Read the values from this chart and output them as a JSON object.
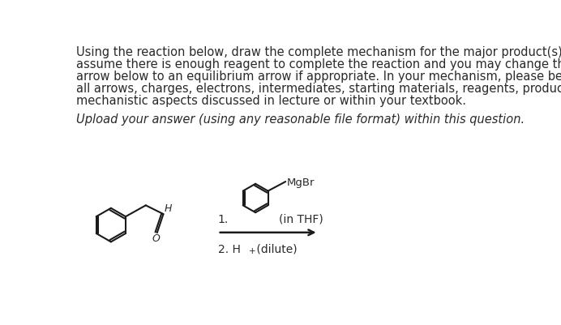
{
  "background_color": "#ffffff",
  "text_color": "#2a2a2a",
  "lines": [
    "Using the reaction below, draw the complete mechanism for the major product(s) only. You may",
    "assume there is enough reagent to complete the reaction and you may change the reaction",
    "arrow below to an equilibrium arrow if appropriate. In your mechanism, please be sure to include",
    "all arrows, charges, electrons, intermediates, starting materials, reagents, products, and any other",
    "mechanistic aspects discussed in lecture or within your textbook."
  ],
  "italic_line": "Upload your answer (using any reasonable file format) within this question.",
  "font_size_main": 10.5,
  "font_size_italic": 10.5
}
